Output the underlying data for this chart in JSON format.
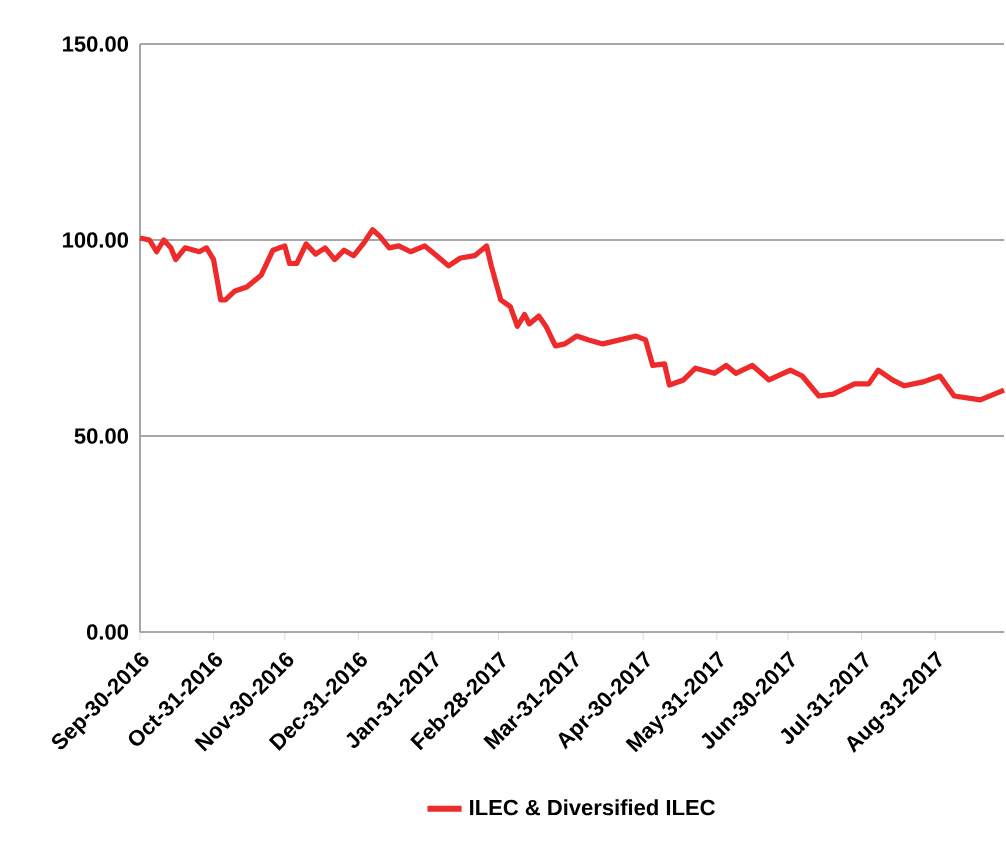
{
  "chart_data": {
    "type": "line",
    "grid": "y",
    "legend": "bottom",
    "line_style": "solid",
    "marker": "none",
    "x": [
      "2016-09-30",
      "2016-10-04",
      "2016-10-07",
      "2016-10-10",
      "2016-10-13",
      "2016-10-15",
      "2016-10-19",
      "2016-10-25",
      "2016-10-28",
      "2016-10-31",
      "2016-11-03",
      "2016-11-05",
      "2016-11-09",
      "2016-11-14",
      "2016-11-20",
      "2016-11-25",
      "2016-11-30",
      "2016-12-02",
      "2016-12-05",
      "2016-12-09",
      "2016-12-13",
      "2016-12-17",
      "2016-12-21",
      "2016-12-25",
      "2016-12-29",
      "2017-01-02",
      "2017-01-06",
      "2017-01-09",
      "2017-01-13",
      "2017-01-17",
      "2017-01-22",
      "2017-01-28",
      "2017-02-02",
      "2017-02-07",
      "2017-02-12",
      "2017-02-18",
      "2017-02-23",
      "2017-02-25",
      "2017-03-01",
      "2017-03-05",
      "2017-03-08",
      "2017-03-11",
      "2017-03-13",
      "2017-03-17",
      "2017-03-20",
      "2017-03-24",
      "2017-03-28",
      "2017-04-02",
      "2017-04-07",
      "2017-04-13",
      "2017-04-20",
      "2017-04-27",
      "2017-05-01",
      "2017-05-04",
      "2017-05-09",
      "2017-05-11",
      "2017-05-17",
      "2017-05-22",
      "2017-05-30",
      "2017-06-04",
      "2017-06-08",
      "2017-06-15",
      "2017-06-22",
      "2017-07-01",
      "2017-07-06",
      "2017-07-13",
      "2017-07-19",
      "2017-07-28",
      "2017-08-03",
      "2017-08-07",
      "2017-08-13",
      "2017-08-18",
      "2017-08-26",
      "2017-09-02",
      "2017-09-08",
      "2017-09-19",
      "2017-09-29"
    ],
    "series": [
      {
        "name": "ILEC & Diversified ILEC",
        "color": "#ee2a2a",
        "values": [
          100.5,
          100,
          97,
          100,
          98,
          95,
          98,
          97,
          98,
          95,
          84.7,
          84.7,
          87,
          88,
          91,
          97.4,
          98.5,
          94,
          94,
          99,
          96.4,
          98,
          95,
          97.4,
          96,
          99,
          102.6,
          101,
          98,
          98.5,
          97,
          98.5,
          96,
          93.4,
          95.4,
          96,
          98.5,
          93.4,
          84.7,
          83,
          78,
          81,
          78.6,
          80.6,
          78,
          73,
          73.5,
          75.5,
          74.5,
          73.5,
          74.5,
          75.5,
          74.5,
          68,
          68.4,
          63,
          64.3,
          67.3,
          66,
          68,
          66,
          68,
          64.3,
          66.8,
          65.3,
          60.2,
          60.7,
          63.3,
          63.3,
          66.8,
          64.3,
          62.8,
          63.8,
          65.3,
          60.2,
          59.2,
          61.7
        ]
      }
    ],
    "xlim": [
      "2016-09-30",
      "2017-09-29"
    ],
    "xticks": [
      {
        "value": "2016-09-30",
        "label": "Sep-30-2016"
      },
      {
        "value": "2016-10-31",
        "label": "Oct-31-2016"
      },
      {
        "value": "2016-11-30",
        "label": "Nov-30-2016"
      },
      {
        "value": "2016-12-31",
        "label": "Dec-31-2016"
      },
      {
        "value": "2017-01-31",
        "label": "Jan-31-2017"
      },
      {
        "value": "2017-02-28",
        "label": "Feb-28-2017"
      },
      {
        "value": "2017-03-31",
        "label": "Mar-31-2017"
      },
      {
        "value": "2017-04-30",
        "label": "Apr-30-2017"
      },
      {
        "value": "2017-05-31",
        "label": "May-31-2017"
      },
      {
        "value": "2017-06-30",
        "label": "Jun-30-2017"
      },
      {
        "value": "2017-07-31",
        "label": "Jul-31-2017"
      },
      {
        "value": "2017-08-31",
        "label": "Aug-31-2017"
      }
    ],
    "ylim": [
      0,
      150
    ],
    "yticks": [
      {
        "value": 0,
        "label": "0.00"
      },
      {
        "value": 50,
        "label": "50.00"
      },
      {
        "value": 100,
        "label": "100.00"
      },
      {
        "value": 150,
        "label": "150.00"
      }
    ]
  }
}
